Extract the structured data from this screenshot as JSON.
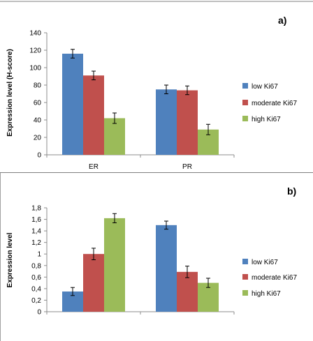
{
  "chart_data": [
    {
      "type": "bar",
      "panel_label": "a)",
      "title": "",
      "xlabel": "",
      "ylabel": "Expression level (H-score)",
      "categories": [
        "ER",
        "PR"
      ],
      "ylim": [
        0,
        140
      ],
      "yticks": [
        "0",
        "20",
        "40",
        "60",
        "80",
        "100",
        "120",
        "140"
      ],
      "ytick_values": [
        0,
        20,
        40,
        60,
        80,
        100,
        120,
        140
      ],
      "grid": false,
      "legend_position": "right",
      "series": [
        {
          "name": "low Ki67",
          "color": "#4f81bd",
          "values": [
            116,
            75
          ],
          "errors": [
            5,
            5
          ]
        },
        {
          "name": "moderate Ki67",
          "color": "#c0504d",
          "values": [
            91,
            74
          ],
          "errors": [
            5,
            5
          ]
        },
        {
          "name": "high Ki67",
          "color": "#9bbb59",
          "values": [
            42,
            29
          ],
          "errors": [
            6,
            6
          ]
        }
      ]
    },
    {
      "type": "bar",
      "panel_label": "b)",
      "title": "",
      "xlabel": "",
      "ylabel": "Expression level",
      "categories": [
        "",
        ""
      ],
      "ylim": [
        0,
        1.8
      ],
      "yticks": [
        "0",
        "0,2",
        "0,4",
        "0,6",
        "0,8",
        "1",
        "1,2",
        "1,4",
        "1,6",
        "1,8"
      ],
      "ytick_values": [
        0,
        0.2,
        0.4,
        0.6,
        0.8,
        1.0,
        1.2,
        1.4,
        1.6,
        1.8
      ],
      "grid": false,
      "legend_position": "right",
      "series": [
        {
          "name": "low Ki67",
          "color": "#4f81bd",
          "values": [
            0.35,
            1.5
          ],
          "errors": [
            0.07,
            0.07
          ]
        },
        {
          "name": "moderate Ki67",
          "color": "#c0504d",
          "values": [
            1.0,
            0.69
          ],
          "errors": [
            0.1,
            0.1
          ]
        },
        {
          "name": "high Ki67",
          "color": "#9bbb59",
          "values": [
            1.62,
            0.5
          ],
          "errors": [
            0.08,
            0.08
          ]
        }
      ]
    }
  ]
}
